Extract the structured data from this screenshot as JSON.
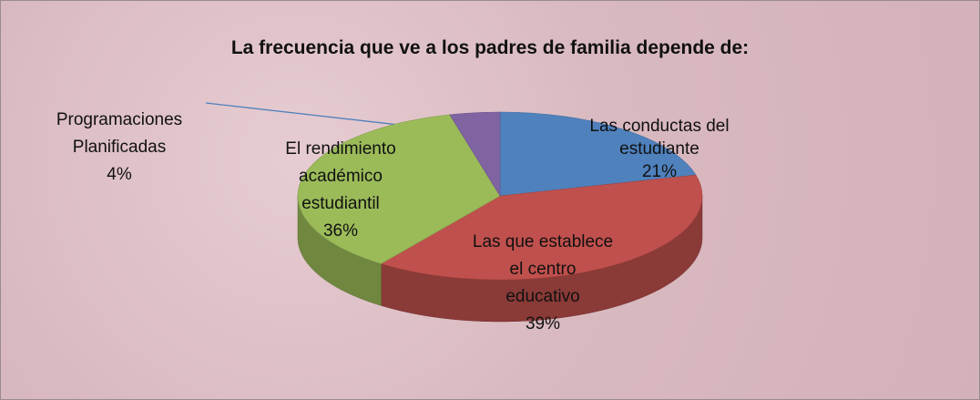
{
  "chart_data": {
    "type": "pie3d",
    "title": "La frecuencia que ve a los padres de familia depende de:",
    "categories": [
      "Las conductas del\nestudiante",
      "Las que establece\nel centro\neducativo",
      "El rendimiento\nacadémico\nestudiantil",
      "Programaciones\nPlanificadas"
    ],
    "values": [
      21,
      39,
      36,
      4
    ],
    "value_labels": [
      "21%",
      "39%",
      "36%",
      "4%"
    ],
    "colors": [
      "#4f81bd",
      "#c0504d",
      "#9bbb59",
      "#8064a2"
    ]
  }
}
